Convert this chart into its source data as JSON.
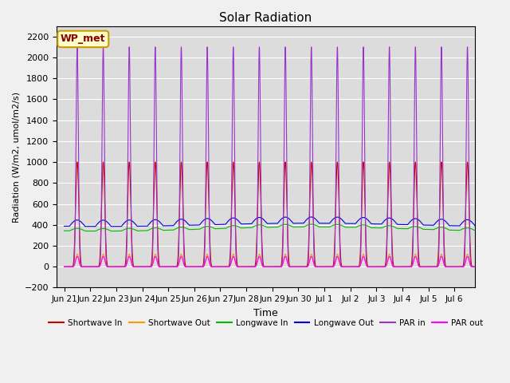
{
  "title": "Solar Radiation",
  "xlabel": "Time",
  "ylabel": "Radiation (W/m2, umol/m2/s)",
  "ylim": [
    -200,
    2300
  ],
  "yticks": [
    -200,
    0,
    200,
    400,
    600,
    800,
    1000,
    1200,
    1400,
    1600,
    1800,
    2000,
    2200
  ],
  "background_color": "#dcdcdc",
  "fig_background": "#f0f0f0",
  "grid_color": "#ffffff",
  "label_box": "WP_met",
  "series": [
    {
      "name": "Shortwave In",
      "color": "#cc0000"
    },
    {
      "name": "Shortwave Out",
      "color": "#ff9900"
    },
    {
      "name": "Longwave In",
      "color": "#00bb00"
    },
    {
      "name": "Longwave Out",
      "color": "#0000dd"
    },
    {
      "name": "PAR in",
      "color": "#9933cc"
    },
    {
      "name": "PAR out",
      "color": "#ff00ff"
    }
  ],
  "n_days": 16,
  "xtick_labels": [
    "Jun 21",
    "Jun 22",
    "Jun 23",
    "Jun 24",
    "Jun 25",
    "Jun 26",
    "Jun 27",
    "Jun 28",
    "Jun 29",
    "Jun 30",
    "Jul 1",
    "Jul 2",
    "Jul 3",
    "Jul 4",
    "Jul 5",
    "Jul 6"
  ]
}
